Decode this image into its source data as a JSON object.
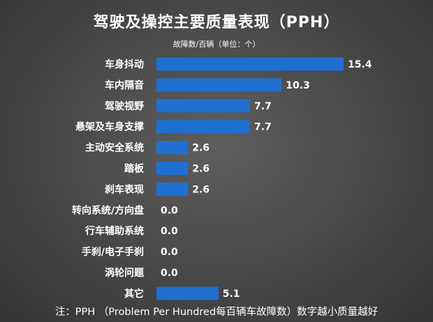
{
  "chart_data": {
    "type": "bar",
    "orientation": "horizontal",
    "title": "驾驶及操控主要质量表现（PPH）",
    "unit_label": "故障数/百辆（单位：个）",
    "categories": [
      "车身抖动",
      "车内隔音",
      "驾驶视野",
      "悬架及车身支撑",
      "主动安全系统",
      "踏板",
      "刹车表现",
      "转向系统/方向盘",
      "行车辅助系统",
      "手刹/电子手刹",
      "涡轮问题",
      "其它"
    ],
    "values": [
      15.4,
      10.3,
      7.7,
      7.7,
      2.6,
      2.6,
      2.6,
      0.0,
      0.0,
      0.0,
      0.0,
      5.1
    ],
    "value_labels": [
      "15.4",
      "10.3",
      "7.7",
      "7.7",
      "2.6",
      "2.6",
      "2.6",
      "0.0",
      "0.0",
      "0.0",
      "0.0",
      "5.1"
    ],
    "xlim": [
      0,
      15.4
    ],
    "grid": false,
    "bar_color": "#1f6fd0",
    "label_color": "#ffffff"
  },
  "footnote": "注：PPH （Problem Per Hundred每百辆车故障数）数字越小质量越好"
}
